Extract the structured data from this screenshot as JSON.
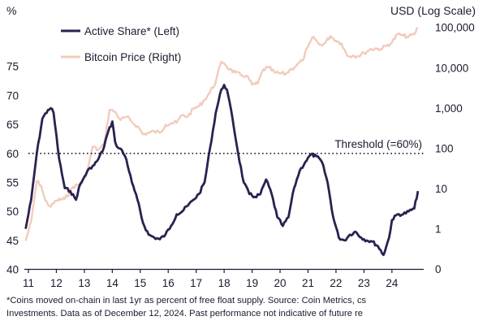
{
  "chart_data": {
    "type": "line",
    "left_axis_label": "%",
    "right_axis_label": "USD (Log Scale)",
    "left_ticks": [
      40,
      45,
      50,
      55,
      60,
      65,
      70,
      75
    ],
    "right_ticks": [
      "0",
      "1",
      "10",
      "100",
      "1,000",
      "10,000",
      "100,000"
    ],
    "right_scale": "log",
    "x_ticks": [
      "11",
      "12",
      "13",
      "14",
      "15",
      "16",
      "17",
      "18",
      "19",
      "20",
      "21",
      "22",
      "23",
      "24"
    ],
    "ylim_left": [
      40,
      75
    ],
    "grid": false,
    "legend_position": "top-left",
    "threshold": {
      "value": 60,
      "label": "Threshold (=60%)"
    },
    "series": [
      {
        "name": "Active Share* (Left)",
        "axis": "left",
        "color": "#2b2150",
        "x": [
          2010.9,
          2011.1,
          2011.3,
          2011.5,
          2011.7,
          2011.8,
          2011.9,
          2012.1,
          2012.3,
          2012.5,
          2012.7,
          2012.8,
          2013.0,
          2013.2,
          2013.35,
          2013.5,
          2013.7,
          2013.8,
          2014.0,
          2014.1,
          2014.2,
          2014.35,
          2014.5,
          2014.7,
          2014.9,
          2015.1,
          2015.3,
          2015.5,
          2015.7,
          2015.9,
          2016.1,
          2016.3,
          2016.5,
          2016.7,
          2016.9,
          2017.1,
          2017.3,
          2017.5,
          2017.7,
          2017.9,
          2018.0,
          2018.1,
          2018.3,
          2018.5,
          2018.7,
          2018.9,
          2019.1,
          2019.3,
          2019.5,
          2019.7,
          2019.9,
          2020.1,
          2020.3,
          2020.5,
          2020.7,
          2020.9,
          2021.1,
          2021.3,
          2021.5,
          2021.7,
          2021.9,
          2022.1,
          2022.3,
          2022.5,
          2022.7,
          2022.9,
          2023.1,
          2023.3,
          2023.5,
          2023.7,
          2023.9,
          2024.0,
          2024.2,
          2024.4,
          2024.6,
          2024.8,
          2024.93
        ],
        "values": [
          47,
          52,
          60,
          66,
          67.5,
          67.8,
          67,
          59,
          54,
          53.5,
          52,
          54,
          56,
          57.5,
          58,
          59,
          61,
          63,
          65.5,
          62,
          61,
          60.5,
          59,
          55,
          52,
          48,
          46,
          45.5,
          45.2,
          46,
          47.5,
          49.5,
          50,
          51,
          52,
          53,
          55,
          61,
          67,
          71,
          71.8,
          71,
          66,
          60,
          55,
          53,
          52.5,
          53,
          55.5,
          53,
          49,
          47.5,
          49,
          54,
          57,
          58.5,
          59.8,
          59.5,
          58.5,
          55,
          49,
          45.5,
          45,
          46,
          46.5,
          45.5,
          45,
          44.8,
          44,
          42.5,
          45.5,
          48.5,
          49.5,
          49.5,
          50,
          50.5,
          53.5
        ]
      },
      {
        "name": "Bitcoin Price (Right)",
        "axis": "right",
        "color": "#f2cbbb",
        "x": [
          2010.9,
          2011.1,
          2011.3,
          2011.45,
          2011.6,
          2011.8,
          2012.0,
          2012.3,
          2012.6,
          2012.9,
          2013.1,
          2013.3,
          2013.5,
          2013.7,
          2013.9,
          2014.1,
          2014.3,
          2014.5,
          2014.7,
          2014.9,
          2015.1,
          2015.3,
          2015.5,
          2015.7,
          2015.9,
          2016.1,
          2016.3,
          2016.5,
          2016.7,
          2016.9,
          2017.1,
          2017.3,
          2017.5,
          2017.7,
          2017.9,
          2018.0,
          2018.2,
          2018.4,
          2018.6,
          2018.8,
          2019.0,
          2019.2,
          2019.4,
          2019.6,
          2019.8,
          2020.0,
          2020.2,
          2020.4,
          2020.6,
          2020.8,
          2021.0,
          2021.2,
          2021.4,
          2021.6,
          2021.8,
          2022.0,
          2022.2,
          2022.4,
          2022.6,
          2022.8,
          2023.0,
          2023.2,
          2023.4,
          2023.6,
          2023.8,
          2024.0,
          2024.2,
          2024.4,
          2024.6,
          2024.8,
          2024.93
        ],
        "values": [
          0.5,
          1.5,
          15,
          12,
          5,
          3.5,
          5,
          5.5,
          11,
          13,
          25,
          110,
          90,
          120,
          900,
          800,
          500,
          600,
          450,
          350,
          220,
          240,
          260,
          240,
          380,
          420,
          430,
          660,
          610,
          950,
          1100,
          1600,
          2500,
          4500,
          14000,
          13000,
          9000,
          7500,
          6500,
          6300,
          3800,
          4000,
          9000,
          10000,
          7500,
          7200,
          7000,
          9300,
          11500,
          15000,
          33000,
          58000,
          37000,
          40000,
          61000,
          47000,
          40000,
          20000,
          20000,
          19500,
          23000,
          28000,
          30000,
          29000,
          35000,
          42000,
          68000,
          62000,
          58000,
          67000,
          100000
        ]
      }
    ]
  },
  "footnote": {
    "line1": "*Coins moved on-chain in last 1yr as percent of free float supply. Source: Coin Metrics, cs",
    "line2": "Investments. Data as of December 12, 2024. Past performance not indicative of future re"
  }
}
